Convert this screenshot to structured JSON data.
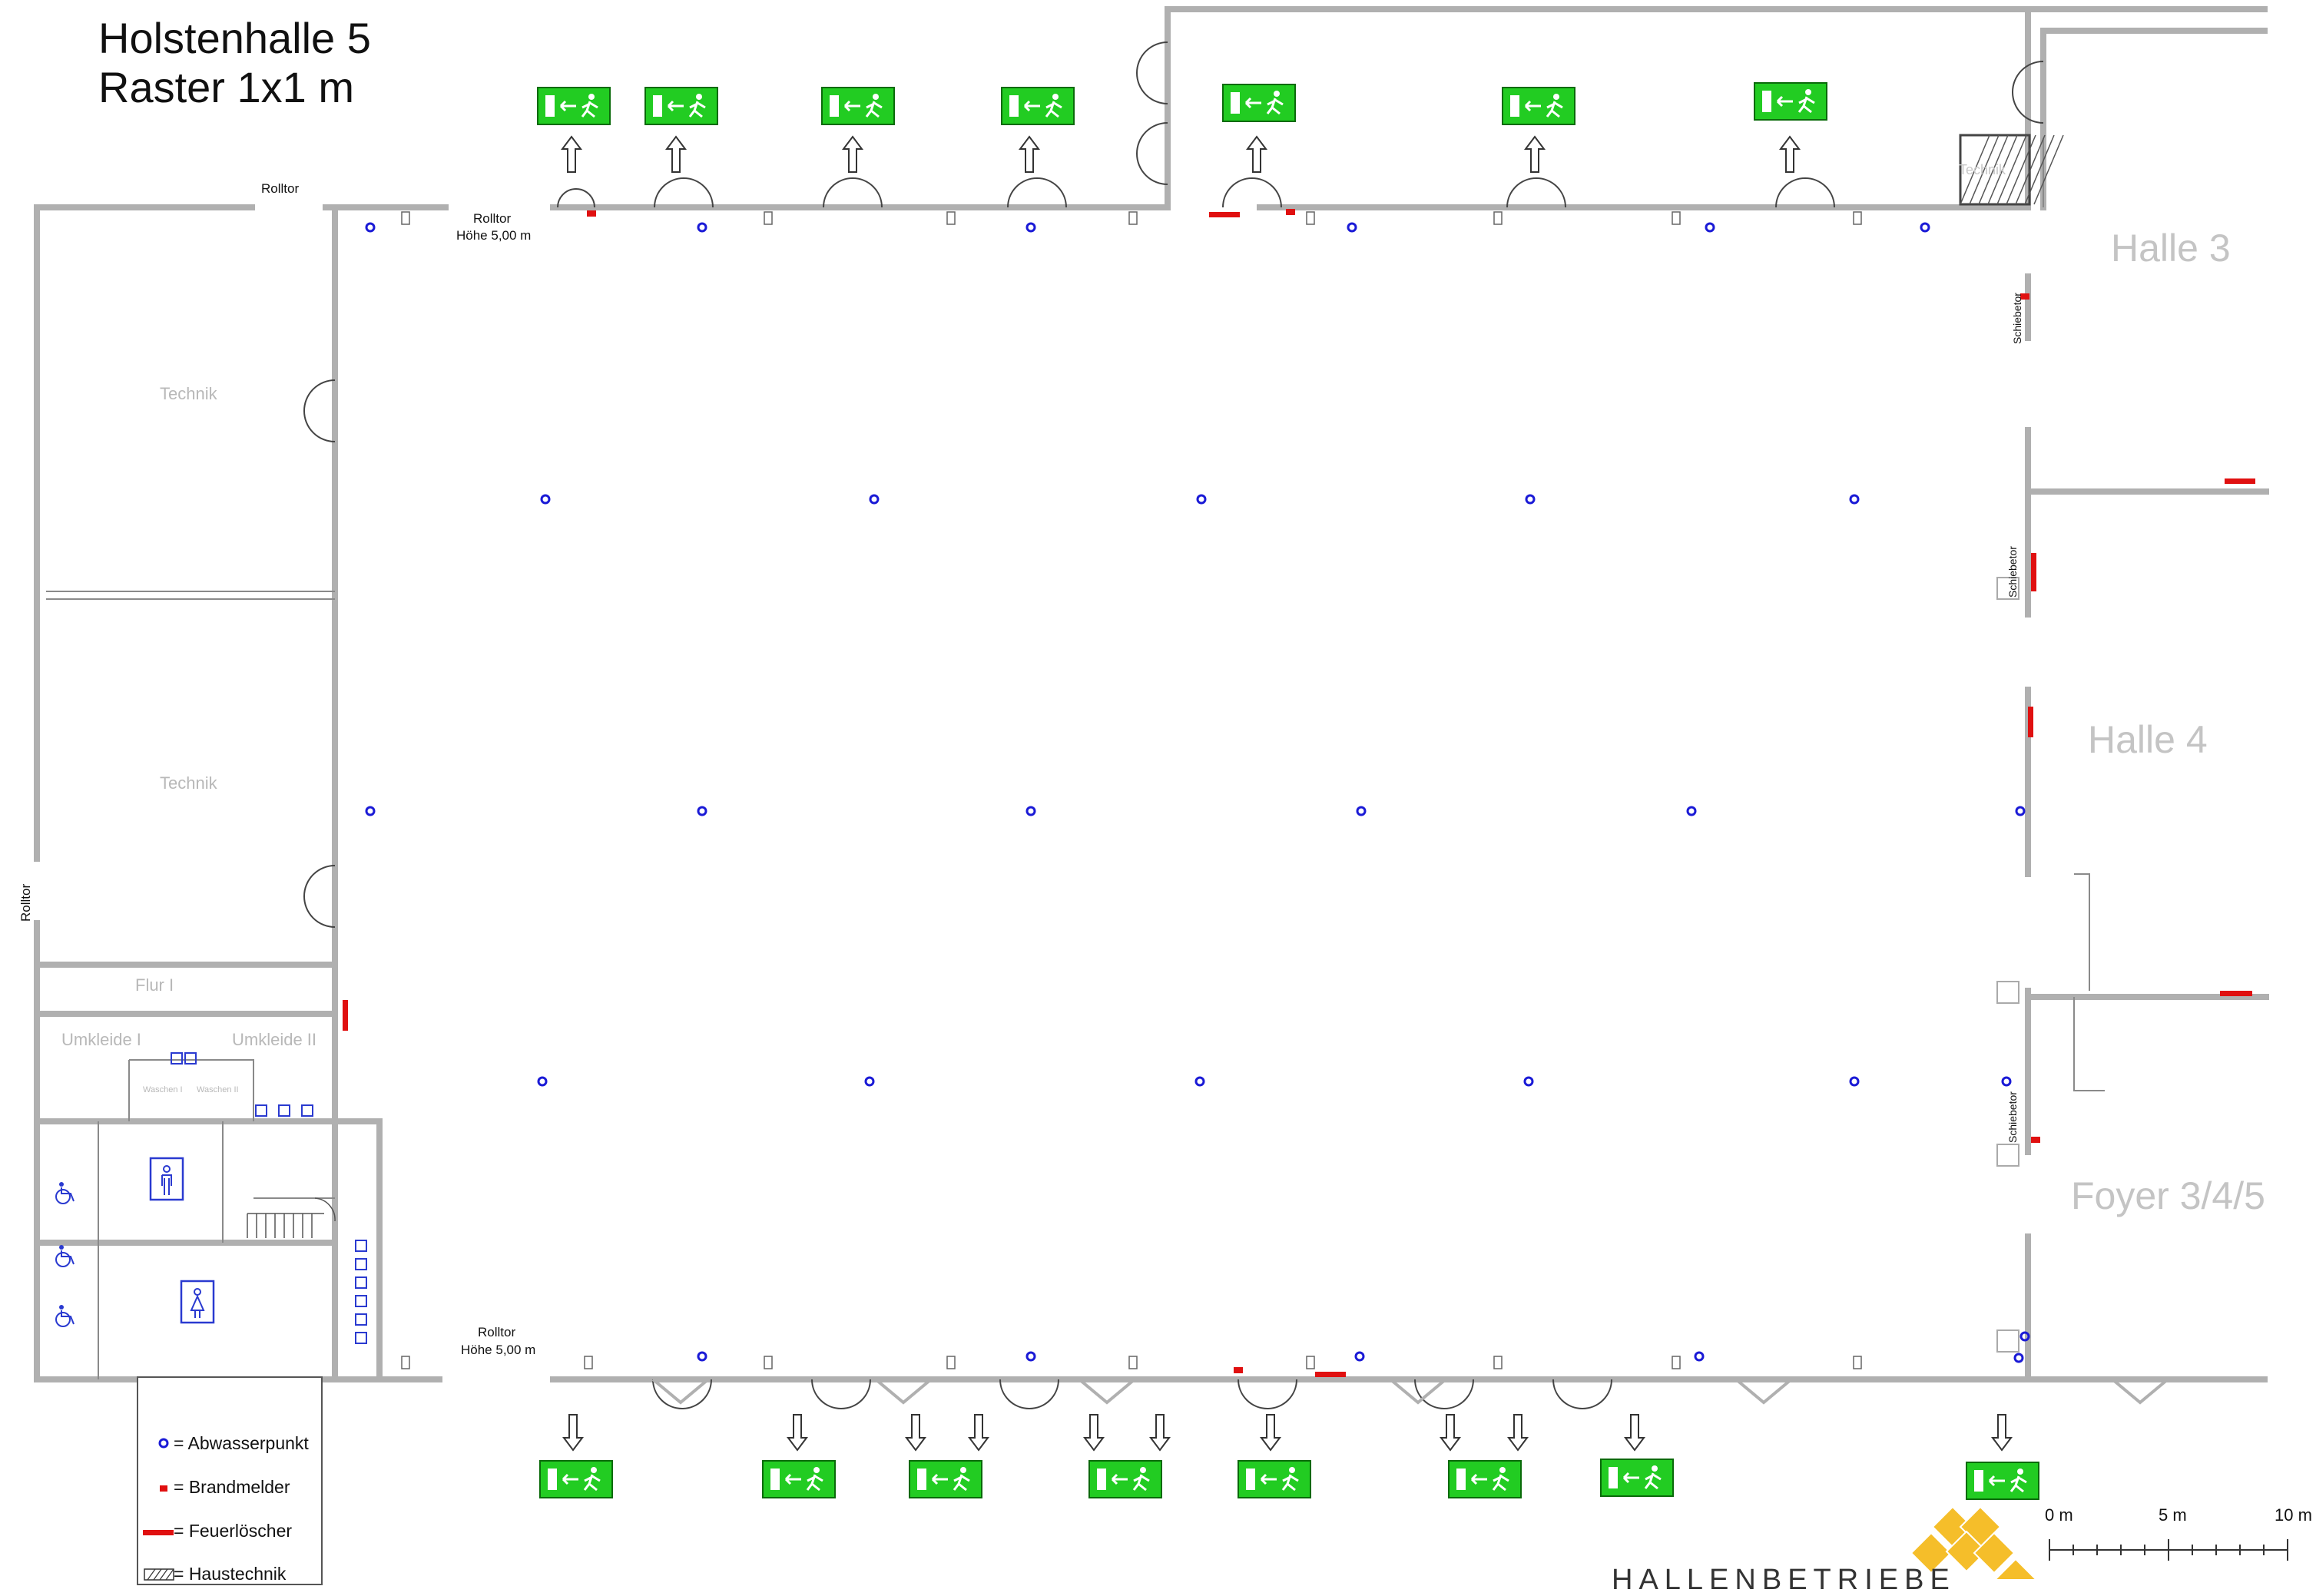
{
  "header": {
    "title": "Holstenhalle 5",
    "subtitle": "Raster 1x1 m"
  },
  "halls": {
    "halle3": "Halle 3",
    "halle4": "Halle 4",
    "foyer": "Foyer 3/4/5"
  },
  "rooms": {
    "technik": "Technik",
    "flur": "Flur I",
    "umkleide1": "Umkleide I",
    "umkleide2": "Umkleide II",
    "waschen1": "Waschen I",
    "waschen2": "Waschen II"
  },
  "gates": {
    "rolltor": "Rolltor",
    "hoehe": "Höhe 5,00 m",
    "schiebetor": "Schiebetor"
  },
  "legend": {
    "abwasser": "= Abwasserpunkt",
    "brandmelder": "= Brandmelder",
    "feuerloescher": "= Feuerlöscher",
    "haustechnik": "= Haustechnik"
  },
  "scale": {
    "zero": "0 m",
    "five": "5 m",
    "ten": "10 m"
  },
  "brand": {
    "wordmark": "HALLENBETRIEBE"
  },
  "colors": {
    "wall": "#b0b0b0",
    "abwasser": "#1a1ad6",
    "brandmelder": "#e01010",
    "exit_sign": "#22cc22",
    "logo": "#f5be2a",
    "hall_label": "#c4c4c4"
  },
  "icons": {
    "exit": "emergency-exit-sign-icon",
    "toilet_male": "male-toilet-icon",
    "toilet_female": "female-toilet-icon",
    "wheelchair": "wheelchair-icon",
    "arrow": "exit-arrow-icon"
  }
}
